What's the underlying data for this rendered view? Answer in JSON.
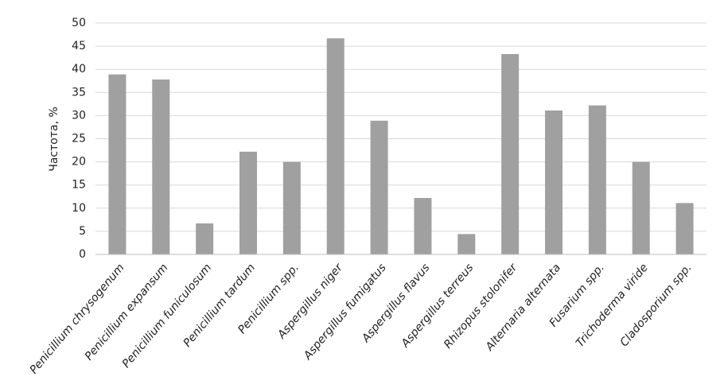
{
  "chart_data": {
    "type": "bar",
    "y_label": "Частота, %",
    "categories": [
      "Penicillium chrysogenum",
      "Penicillium expansum",
      "Penicillium funiculosum",
      "Penicillium tardum",
      "Penicillium spp.",
      "Aspergillus niger",
      "Aspergillus fumigatus",
      "Aspergillus flavus",
      "Aspergillus terreus",
      "Rhizopus stolonifer",
      "Alternaria alternata",
      "Fusarium spp.",
      "Trichoderma viride",
      "Cladosporium spp."
    ],
    "values": [
      38.9,
      37.8,
      6.7,
      22.2,
      20,
      46.7,
      28.9,
      12.2,
      4.4,
      43.3,
      31.1,
      32.2,
      20,
      11.1
    ],
    "color": "#a0a0a0",
    "ylim": [
      0,
      50
    ],
    "yticks": [
      0,
      5,
      10,
      15,
      20,
      25,
      30,
      35,
      40,
      45,
      50
    ],
    "grid": true
  }
}
